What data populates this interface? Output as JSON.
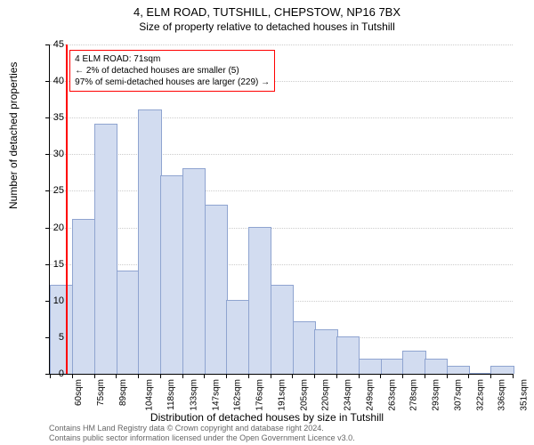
{
  "titles": {
    "main": "4, ELM ROAD, TUTSHILL, CHEPSTOW, NP16 7BX",
    "sub": "Size of property relative to detached houses in Tutshill"
  },
  "axes": {
    "ylabel": "Number of detached properties",
    "xlabel": "Distribution of detached houses by size in Tutshill",
    "ymax": 45,
    "ytick_step": 5,
    "yticks": [
      0,
      5,
      10,
      15,
      20,
      25,
      30,
      35,
      40,
      45
    ]
  },
  "chart": {
    "type": "bar",
    "bar_fill": "#d2dcf0",
    "bar_stroke": "#8fa4d0",
    "grid_color": "#cccccc",
    "background": "#ffffff",
    "categories": [
      "60sqm",
      "75sqm",
      "89sqm",
      "104sqm",
      "118sqm",
      "133sqm",
      "147sqm",
      "162sqm",
      "176sqm",
      "191sqm",
      "205sqm",
      "220sqm",
      "234sqm",
      "249sqm",
      "263sqm",
      "278sqm",
      "293sqm",
      "307sqm",
      "322sqm",
      "336sqm",
      "351sqm"
    ],
    "values": [
      12,
      21,
      34,
      14,
      36,
      27,
      28,
      23,
      10,
      20,
      12,
      7,
      6,
      5,
      2,
      2,
      3,
      2,
      1,
      0,
      1
    ]
  },
  "marker": {
    "line_color": "#ff0000",
    "position_value": 71,
    "box": {
      "line1": "4 ELM ROAD: 71sqm",
      "line2": "← 2% of detached houses are smaller (5)",
      "line3": "97% of semi-detached houses are larger (229) →"
    }
  },
  "footer": {
    "line1": "Contains HM Land Registry data © Crown copyright and database right 2024.",
    "line2": "Contains public sector information licensed under the Open Government Licence v3.0."
  }
}
